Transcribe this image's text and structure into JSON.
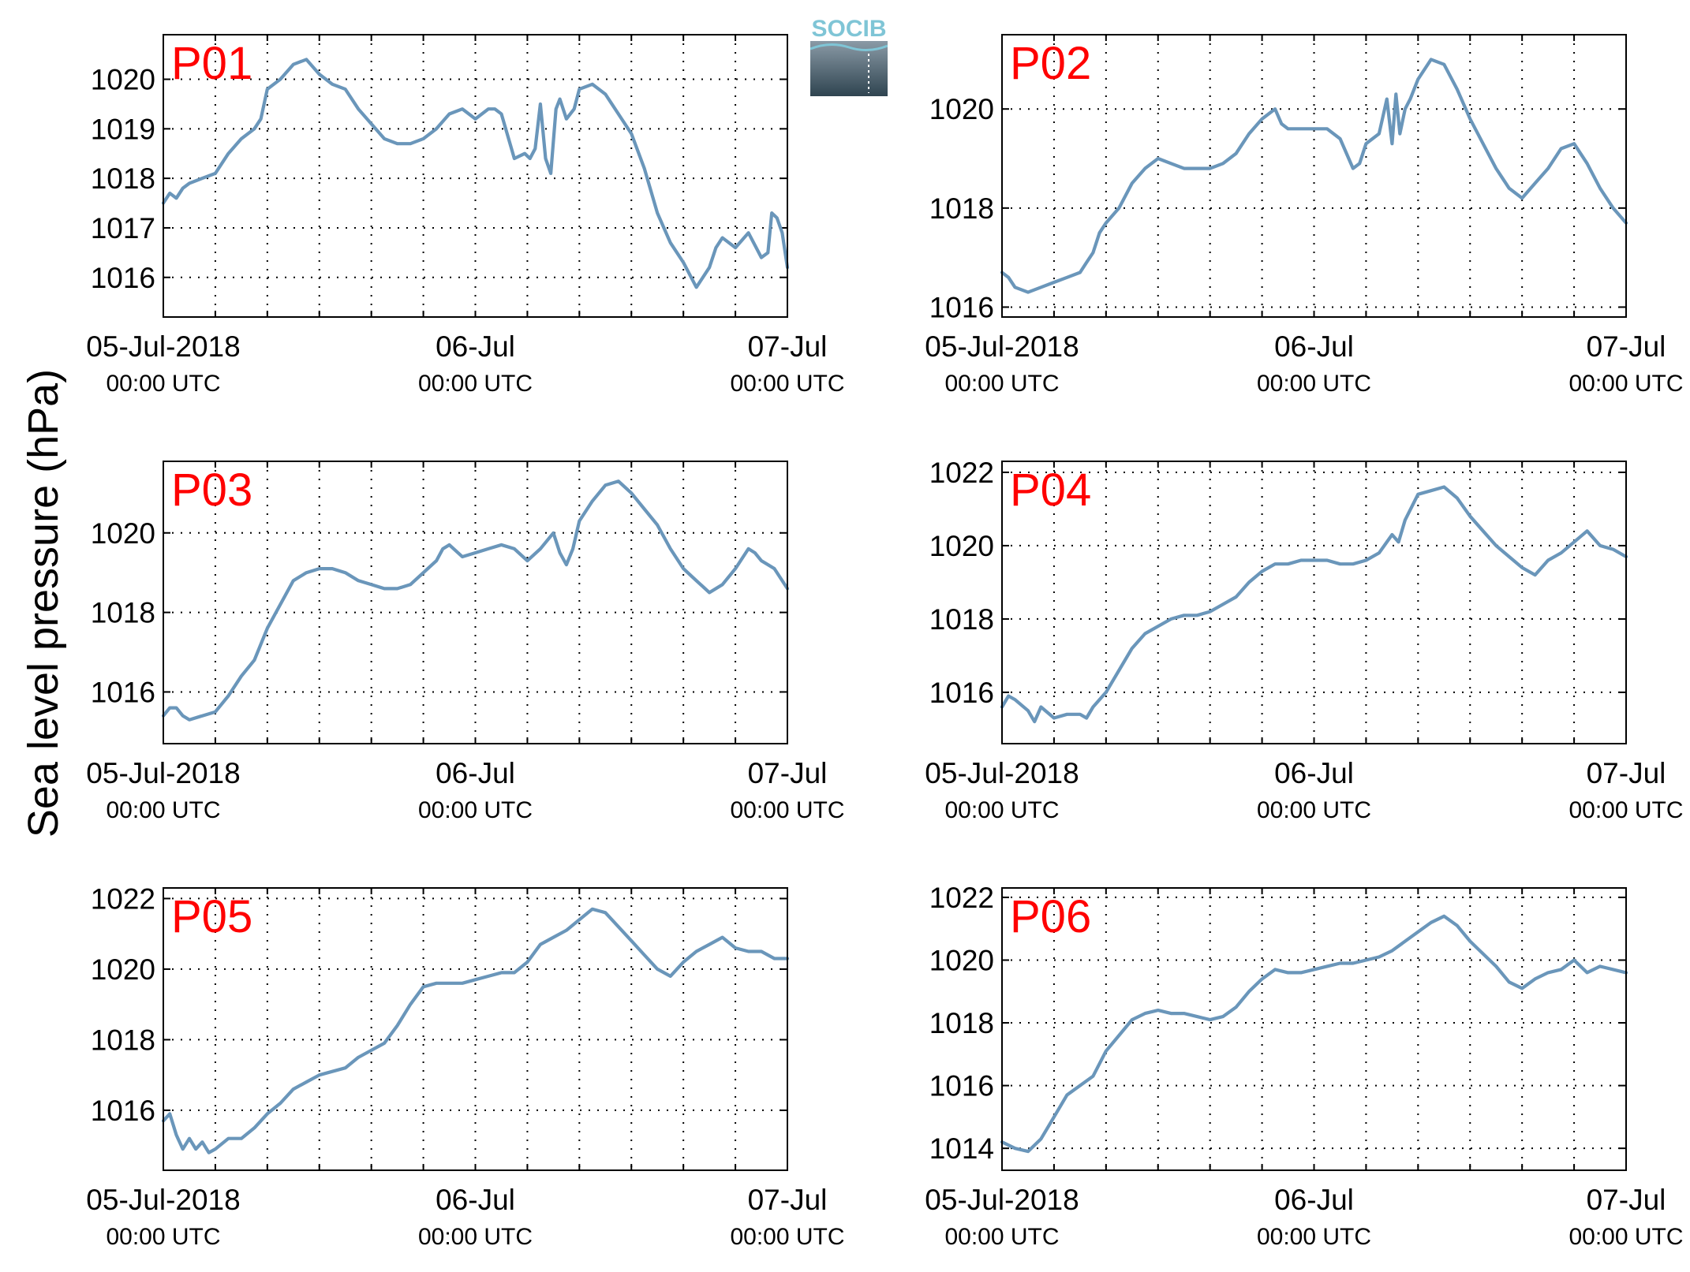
{
  "figure": {
    "ylabel": "Sea level pressure (hPa)",
    "logo_text": "SOCIB",
    "colors": {
      "line": "#6a96ba",
      "panel_label": "#ff0000",
      "axis": "#000000",
      "grid": "#000000",
      "logo_text": "#7fc5d6",
      "logo_top": "#8a9aa6",
      "logo_bottom": "#2f4450"
    }
  },
  "chart_data": [
    {
      "type": "line",
      "panel": "P01",
      "ylim": [
        1015.2,
        1020.9
      ],
      "yticks": [
        1016,
        1017,
        1018,
        1019,
        1020
      ],
      "xlim": [
        0,
        48
      ],
      "grid": true,
      "xticks": [
        {
          "value": 0,
          "line1": "05-Jul-2018",
          "line2": "00:00 UTC"
        },
        {
          "value": 24,
          "line1": "06-Jul",
          "line2": "00:00 UTC"
        },
        {
          "value": 48,
          "line1": "07-Jul",
          "line2": "00:00 UTC"
        }
      ],
      "x": [
        0,
        0.5,
        1,
        1.5,
        2,
        3,
        4,
        5,
        6,
        7,
        7.5,
        8,
        9,
        10,
        11,
        12,
        13,
        14,
        15,
        16,
        17,
        18,
        19,
        20,
        21,
        22,
        23,
        24,
        25,
        25.5,
        26,
        27,
        27.8,
        28.2,
        28.6,
        29,
        29.4,
        29.8,
        30.2,
        30.5,
        31,
        31.6,
        32,
        33,
        34,
        35,
        36,
        37,
        38,
        39,
        40,
        41,
        42,
        42.5,
        43,
        44,
        45,
        46,
        46.5,
        46.8,
        47.2,
        47.6,
        48
      ],
      "y": [
        1017.5,
        1017.7,
        1017.6,
        1017.8,
        1017.9,
        1018,
        1018.1,
        1018.5,
        1018.8,
        1019,
        1019.2,
        1019.8,
        1020,
        1020.3,
        1020.4,
        1020.1,
        1019.9,
        1019.8,
        1019.4,
        1019.1,
        1018.8,
        1018.7,
        1018.7,
        1018.8,
        1019,
        1019.3,
        1019.4,
        1019.2,
        1019.4,
        1019.4,
        1019.3,
        1018.4,
        1018.5,
        1018.4,
        1018.6,
        1019.5,
        1018.4,
        1018.1,
        1019.4,
        1019.6,
        1019.2,
        1019.4,
        1019.8,
        1019.9,
        1019.7,
        1019.3,
        1018.9,
        1018.2,
        1017.3,
        1016.7,
        1016.3,
        1015.8,
        1016.2,
        1016.6,
        1016.8,
        1016.6,
        1016.9,
        1016.4,
        1016.5,
        1017.3,
        1017.2,
        1016.9,
        1016.2
      ]
    },
    {
      "type": "line",
      "panel": "P02",
      "ylim": [
        1015.8,
        1021.5
      ],
      "yticks": [
        1016,
        1018,
        1020
      ],
      "xlim": [
        0,
        48
      ],
      "grid": true,
      "xticks": [
        {
          "value": 0,
          "line1": "05-Jul-2018",
          "line2": "00:00 UTC"
        },
        {
          "value": 24,
          "line1": "06-Jul",
          "line2": "00:00 UTC"
        },
        {
          "value": 48,
          "line1": "07-Jul",
          "line2": "00:00 UTC"
        }
      ],
      "x": [
        0,
        0.5,
        1,
        2,
        3,
        4,
        5,
        6,
        6.5,
        7,
        7.5,
        8,
        9,
        10,
        11,
        12,
        13,
        14,
        15,
        16,
        17,
        18,
        19,
        20,
        21,
        21.5,
        22,
        23,
        24,
        25,
        26,
        27,
        27.5,
        28,
        29,
        29.6,
        30,
        30.3,
        30.6,
        31,
        31.4,
        32,
        33,
        34,
        35,
        36,
        37,
        38,
        39,
        40,
        41,
        42,
        43,
        44,
        45,
        46,
        46.5,
        47,
        48
      ],
      "y": [
        1016.7,
        1016.6,
        1016.4,
        1016.3,
        1016.4,
        1016.5,
        1016.6,
        1016.7,
        1016.9,
        1017.1,
        1017.5,
        1017.7,
        1018,
        1018.5,
        1018.8,
        1019,
        1018.9,
        1018.8,
        1018.8,
        1018.8,
        1018.9,
        1019.1,
        1019.5,
        1019.8,
        1020,
        1019.7,
        1019.6,
        1019.6,
        1019.6,
        1019.6,
        1019.4,
        1018.8,
        1018.9,
        1019.3,
        1019.5,
        1020.2,
        1019.3,
        1020.3,
        1019.5,
        1020,
        1020.2,
        1020.6,
        1021,
        1020.9,
        1020.4,
        1019.8,
        1019.3,
        1018.8,
        1018.4,
        1018.2,
        1018.5,
        1018.8,
        1019.2,
        1019.3,
        1018.9,
        1018.4,
        1018.2,
        1018,
        1017.7
      ]
    },
    {
      "type": "line",
      "panel": "P03",
      "ylim": [
        1014.7,
        1021.8
      ],
      "yticks": [
        1016,
        1018,
        1020
      ],
      "xlim": [
        0,
        48
      ],
      "grid": true,
      "xticks": [
        {
          "value": 0,
          "line1": "05-Jul-2018",
          "line2": "00:00 UTC"
        },
        {
          "value": 24,
          "line1": "06-Jul",
          "line2": "00:00 UTC"
        },
        {
          "value": 48,
          "line1": "07-Jul",
          "line2": "00:00 UTC"
        }
      ],
      "x": [
        0,
        0.5,
        1,
        1.5,
        2,
        3,
        4,
        5,
        6,
        7,
        8,
        9,
        10,
        11,
        12,
        13,
        14,
        15,
        16,
        17,
        18,
        19,
        20,
        21,
        21.5,
        22,
        23,
        24,
        25,
        26,
        27,
        28,
        29,
        30,
        30.5,
        31,
        31.5,
        32,
        33,
        34,
        35,
        36,
        37,
        38,
        39,
        40,
        41,
        42,
        43,
        44,
        45,
        45.5,
        46,
        46.5,
        47,
        48
      ],
      "y": [
        1015.4,
        1015.6,
        1015.6,
        1015.4,
        1015.3,
        1015.4,
        1015.5,
        1015.9,
        1016.4,
        1016.8,
        1017.6,
        1018.2,
        1018.8,
        1019,
        1019.1,
        1019.1,
        1019,
        1018.8,
        1018.7,
        1018.6,
        1018.6,
        1018.7,
        1019,
        1019.3,
        1019.6,
        1019.7,
        1019.4,
        1019.5,
        1019.6,
        1019.7,
        1019.6,
        1019.3,
        1019.6,
        1020,
        1019.5,
        1019.2,
        1019.6,
        1020.3,
        1020.8,
        1021.2,
        1021.3,
        1021,
        1020.6,
        1020.2,
        1019.6,
        1019.1,
        1018.8,
        1018.5,
        1018.7,
        1019.1,
        1019.6,
        1019.5,
        1019.3,
        1019.2,
        1019.1,
        1018.6
      ]
    },
    {
      "type": "line",
      "panel": "P04",
      "ylim": [
        1014.6,
        1022.3
      ],
      "yticks": [
        1016,
        1018,
        1020,
        1022
      ],
      "xlim": [
        0,
        48
      ],
      "grid": true,
      "xticks": [
        {
          "value": 0,
          "line1": "05-Jul-2018",
          "line2": "00:00 UTC"
        },
        {
          "value": 24,
          "line1": "06-Jul",
          "line2": "00:00 UTC"
        },
        {
          "value": 48,
          "line1": "07-Jul",
          "line2": "00:00 UTC"
        }
      ],
      "x": [
        0,
        0.5,
        1,
        2,
        2.5,
        3,
        4,
        5,
        6,
        6.5,
        7,
        8,
        9,
        10,
        11,
        12,
        13,
        14,
        15,
        16,
        17,
        18,
        19,
        20,
        21,
        22,
        23,
        24,
        25,
        26,
        27,
        28,
        29,
        30,
        30.5,
        31,
        32,
        33,
        34,
        35,
        36,
        37,
        38,
        39,
        40,
        41,
        42,
        43,
        44,
        45,
        46,
        47,
        48
      ],
      "y": [
        1015.6,
        1015.9,
        1015.8,
        1015.5,
        1015.2,
        1015.6,
        1015.3,
        1015.4,
        1015.4,
        1015.3,
        1015.6,
        1016,
        1016.6,
        1017.2,
        1017.6,
        1017.8,
        1018,
        1018.1,
        1018.1,
        1018.2,
        1018.4,
        1018.6,
        1019,
        1019.3,
        1019.5,
        1019.5,
        1019.6,
        1019.6,
        1019.6,
        1019.5,
        1019.5,
        1019.6,
        1019.8,
        1020.3,
        1020.1,
        1020.7,
        1021.4,
        1021.5,
        1021.6,
        1021.3,
        1020.8,
        1020.4,
        1020,
        1019.7,
        1019.4,
        1019.2,
        1019.6,
        1019.8,
        1020.1,
        1020.4,
        1020,
        1019.9,
        1019.7
      ]
    },
    {
      "type": "line",
      "panel": "P05",
      "ylim": [
        1014.3,
        1022.3
      ],
      "yticks": [
        1016,
        1018,
        1020,
        1022
      ],
      "xlim": [
        0,
        48
      ],
      "grid": true,
      "xticks": [
        {
          "value": 0,
          "line1": "05-Jul-2018",
          "line2": "00:00 UTC"
        },
        {
          "value": 24,
          "line1": "06-Jul",
          "line2": "00:00 UTC"
        },
        {
          "value": 48,
          "line1": "07-Jul",
          "line2": "00:00 UTC"
        }
      ],
      "x": [
        0,
        0.5,
        1,
        1.5,
        2,
        2.5,
        3,
        3.5,
        4,
        5,
        6,
        7,
        8,
        9,
        10,
        11,
        12,
        13,
        14,
        15,
        16,
        17,
        18,
        19,
        20,
        21,
        22,
        23,
        24,
        25,
        26,
        27,
        28,
        29,
        30,
        31,
        32,
        33,
        34,
        35,
        36,
        37,
        38,
        39,
        40,
        41,
        42,
        43,
        44,
        45,
        46,
        47,
        48
      ],
      "y": [
        1015.7,
        1015.9,
        1015.3,
        1014.9,
        1015.2,
        1014.9,
        1015.1,
        1014.8,
        1014.9,
        1015.2,
        1015.2,
        1015.5,
        1015.9,
        1016.2,
        1016.6,
        1016.8,
        1017,
        1017.1,
        1017.2,
        1017.5,
        1017.7,
        1017.9,
        1018.4,
        1019,
        1019.5,
        1019.6,
        1019.6,
        1019.6,
        1019.7,
        1019.8,
        1019.9,
        1019.9,
        1020.2,
        1020.7,
        1020.9,
        1021.1,
        1021.4,
        1021.7,
        1021.6,
        1021.2,
        1020.8,
        1020.4,
        1020,
        1019.8,
        1020.2,
        1020.5,
        1020.7,
        1020.9,
        1020.6,
        1020.5,
        1020.5,
        1020.3,
        1020.3
      ]
    },
    {
      "type": "line",
      "panel": "P06",
      "ylim": [
        1013.3,
        1022.3
      ],
      "yticks": [
        1014,
        1016,
        1018,
        1020,
        1022
      ],
      "xlim": [
        0,
        48
      ],
      "grid": true,
      "xticks": [
        {
          "value": 0,
          "line1": "05-Jul-2018",
          "line2": "00:00 UTC"
        },
        {
          "value": 24,
          "line1": "06-Jul",
          "line2": "00:00 UTC"
        },
        {
          "value": 48,
          "line1": "07-Jul",
          "line2": "00:00 UTC"
        }
      ],
      "x": [
        0,
        1,
        2,
        3,
        4,
        5,
        6,
        7,
        8,
        9,
        10,
        11,
        12,
        13,
        14,
        15,
        16,
        17,
        18,
        19,
        20,
        21,
        22,
        23,
        24,
        25,
        26,
        27,
        28,
        29,
        30,
        31,
        32,
        33,
        34,
        35,
        36,
        37,
        38,
        39,
        40,
        41,
        42,
        43,
        44,
        45,
        46,
        47,
        48
      ],
      "y": [
        1014.2,
        1014,
        1013.9,
        1014.3,
        1015,
        1015.7,
        1016,
        1016.3,
        1017.1,
        1017.6,
        1018.1,
        1018.3,
        1018.4,
        1018.3,
        1018.3,
        1018.2,
        1018.1,
        1018.2,
        1018.5,
        1019,
        1019.4,
        1019.7,
        1019.6,
        1019.6,
        1019.7,
        1019.8,
        1019.9,
        1019.9,
        1020,
        1020.1,
        1020.3,
        1020.6,
        1020.9,
        1021.2,
        1021.4,
        1021.1,
        1020.6,
        1020.2,
        1019.8,
        1019.3,
        1019.1,
        1019.4,
        1019.6,
        1019.7,
        1020,
        1019.6,
        1019.8,
        1019.7,
        1019.6
      ]
    }
  ]
}
